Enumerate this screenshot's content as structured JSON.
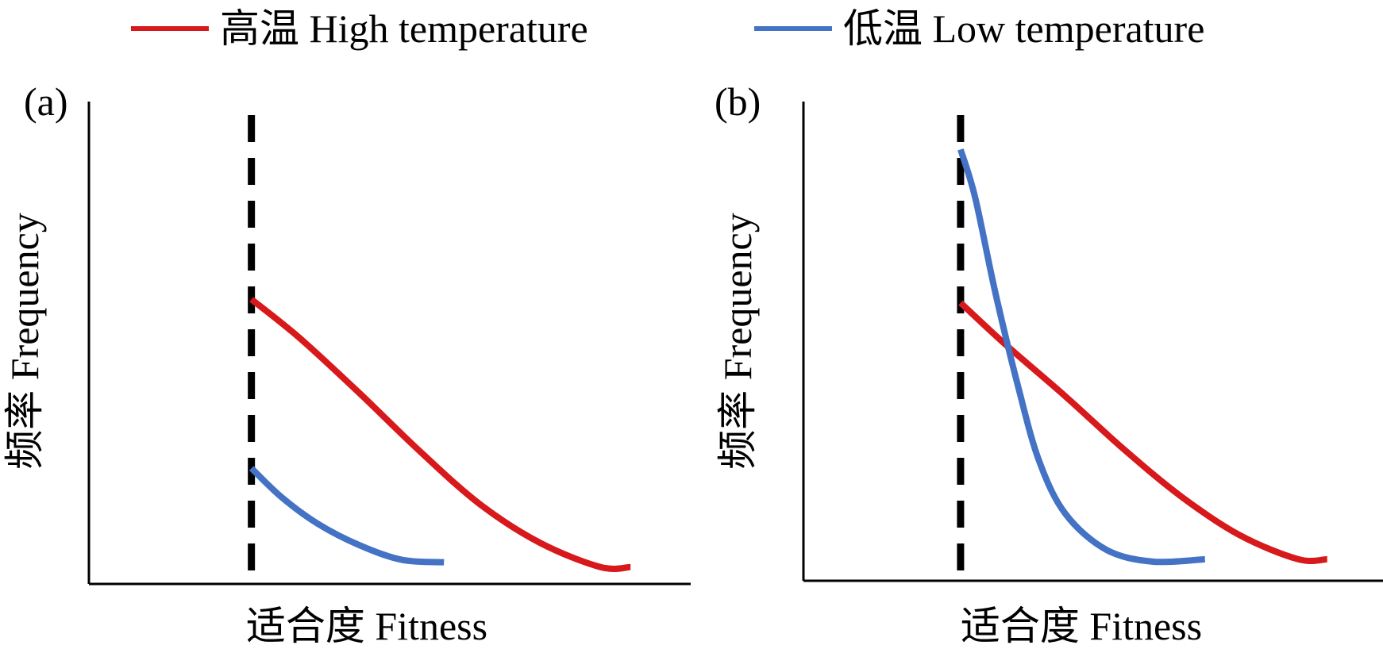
{
  "legend": {
    "items": [
      {
        "label": "高温 High temperature",
        "color": "#d7191c",
        "series": "high"
      },
      {
        "label": "低温 Low temperature",
        "color": "#4472c4",
        "series": "low"
      }
    ]
  },
  "chart_data": [
    {
      "type": "line",
      "panel_label": "(a)",
      "xlabel": "适合度 Fitness",
      "ylabel": "频率 Frequency",
      "xlim": [
        0,
        10
      ],
      "ylim": [
        0,
        10
      ],
      "threshold_x": 2.7,
      "series": [
        {
          "key": "high",
          "color": "#d7191c",
          "x": [
            2.7,
            3.5,
            4.5,
            5.5,
            6.5,
            7.5,
            8.5,
            9.0
          ],
          "y": [
            5.9,
            5.1,
            3.95,
            2.75,
            1.65,
            0.85,
            0.35,
            0.35
          ]
        },
        {
          "key": "low",
          "color": "#4472c4",
          "x": [
            2.7,
            3.2,
            3.8,
            4.5,
            5.2,
            5.9
          ],
          "y": [
            2.4,
            1.8,
            1.25,
            0.8,
            0.5,
            0.45
          ]
        }
      ]
    },
    {
      "type": "line",
      "panel_label": "(b)",
      "xlabel": "适合度 Fitness",
      "ylabel": "频率 Frequency",
      "xlim": [
        0,
        10
      ],
      "ylim": [
        0,
        10
      ],
      "threshold_x": 2.7,
      "series": [
        {
          "key": "high",
          "color": "#d7191c",
          "x": [
            2.7,
            3.5,
            4.5,
            5.5,
            6.5,
            7.5,
            8.5,
            9.0
          ],
          "y": [
            5.8,
            4.9,
            3.85,
            2.75,
            1.75,
            0.95,
            0.45,
            0.45
          ]
        },
        {
          "key": "low",
          "color": "#4472c4",
          "x": [
            2.7,
            2.95,
            3.3,
            3.7,
            4.05,
            4.5,
            5.2,
            6.0,
            6.9
          ],
          "y": [
            9.0,
            8.0,
            6.0,
            4.0,
            2.5,
            1.4,
            0.65,
            0.4,
            0.45
          ]
        }
      ]
    }
  ]
}
